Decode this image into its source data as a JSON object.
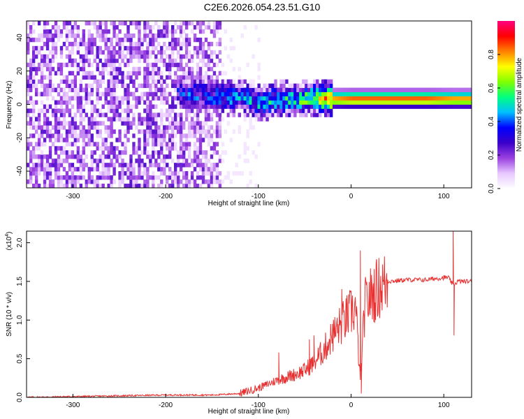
{
  "window": {
    "title": "C2E6.2026.054.23.51.G10"
  },
  "chart_data": [
    {
      "type": "heatmap",
      "name": "spectrogram",
      "title": "",
      "xlabel": "Height of straight line (km)",
      "ylabel": "Frequency (Hz)",
      "xlim": [
        -350,
        130
      ],
      "ylim": [
        -50,
        50
      ],
      "xticks": [
        -300,
        -200,
        -100,
        0,
        100
      ],
      "xtick_labels": [
        "-300",
        "-200",
        "-100",
        "0",
        "100"
      ],
      "yticks": [
        -40,
        -20,
        0,
        20,
        40
      ],
      "ytick_labels": [
        "-40",
        "-20",
        "0",
        "20",
        "40"
      ],
      "colorbar": {
        "label": "Normalized spectral amplitude",
        "range": [
          0,
          1
        ],
        "ticks": [
          0.0,
          0.2,
          0.4,
          0.6,
          0.8
        ],
        "tick_labels": [
          "0.0",
          "0.2",
          "0.4",
          "0.6",
          "0.8"
        ],
        "colors": [
          "#ffffff",
          "#e8c8ff",
          "#9a40e0",
          "#3a00c8",
          "#0000ff",
          "#00c0ff",
          "#00ff80",
          "#80ff00",
          "#ffff00",
          "#ff8000",
          "#ff0000",
          "#ff0080"
        ]
      },
      "ridge": {
        "description_points_x": [
          -185,
          -150,
          -120,
          -100,
          -80,
          -60,
          -40,
          -20,
          0,
          40,
          80,
          110,
          130
        ],
        "center_hz": [
          6,
          4,
          3,
          0,
          2,
          1,
          3,
          2,
          2,
          2,
          2,
          2,
          2
        ],
        "amplitude": [
          0.25,
          0.3,
          0.35,
          0.4,
          0.4,
          0.45,
          0.55,
          0.8,
          0.85,
          0.85,
          0.85,
          0.8,
          0.8
        ]
      },
      "noise_region_km": [
        -350,
        -140
      ]
    },
    {
      "type": "line",
      "name": "snr",
      "xlabel": "Height of straight line (km)",
      "ylabel": "SNR (10 * v/v)",
      "y_multiplier_label": "(x10",
      "y_multiplier_exponent": "4",
      "y_multiplier_close": ")",
      "xlim": [
        -350,
        130
      ],
      "ylim": [
        0,
        2.15
      ],
      "xticks": [
        -300,
        -200,
        -100,
        0,
        100
      ],
      "xtick_labels": [
        "-300",
        "-200",
        "-100",
        "0",
        "100"
      ],
      "yticks": [
        0.0,
        0.5,
        1.0,
        1.5,
        2.0
      ],
      "ytick_labels": [
        "0.0",
        "0.5",
        "1.0",
        "1.5",
        "2.0"
      ],
      "series": [
        {
          "name": "SNR",
          "color": "#e83030",
          "x": [
            -350,
            -300,
            -250,
            -200,
            -150,
            -120,
            -100,
            -80,
            -60,
            -50,
            -40,
            -30,
            -20,
            -10,
            0,
            5,
            10,
            15,
            20,
            30,
            40,
            60,
            80,
            100,
            105,
            110,
            115,
            120,
            130
          ],
          "y": [
            0.0,
            0.01,
            0.02,
            0.03,
            0.03,
            0.05,
            0.12,
            0.22,
            0.3,
            0.35,
            0.45,
            0.6,
            0.8,
            0.95,
            1.1,
            1.15,
            0.2,
            1.2,
            1.3,
            1.42,
            1.5,
            1.52,
            1.52,
            1.55,
            1.55,
            1.45,
            1.5,
            1.5,
            1.5
          ],
          "spikes": [
            {
              "x": -78,
              "y": 0.58
            },
            {
              "x": -45,
              "y": 0.75
            },
            {
              "x": -40,
              "y": 0.8
            },
            {
              "x": -20,
              "y": 0.95
            },
            {
              "x": -10,
              "y": 1.4
            },
            {
              "x": 10,
              "y": 1.9
            },
            {
              "x": 11,
              "y": 0.05
            },
            {
              "x": 110,
              "y": 2.15
            },
            {
              "x": 111,
              "y": 0.8
            }
          ]
        }
      ]
    }
  ]
}
